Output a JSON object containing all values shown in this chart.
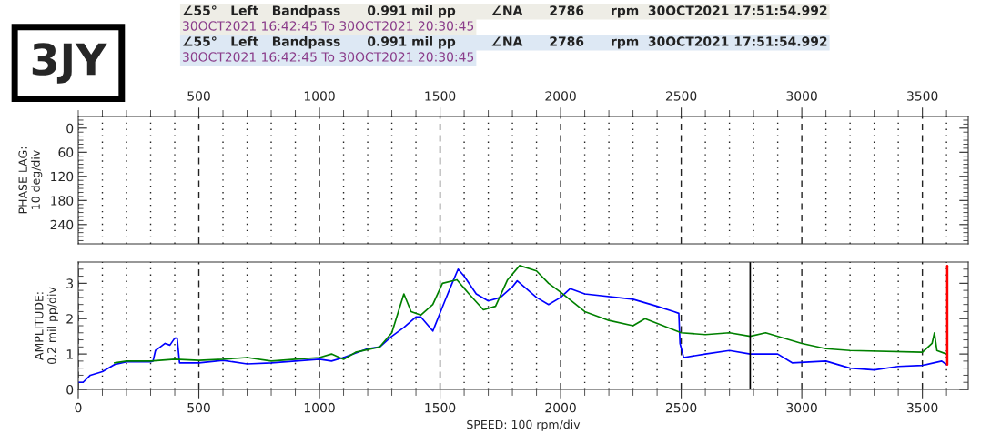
{
  "chart_data": [
    {
      "type": "line",
      "ylabel": "PHASE LAG:\n10 deg/div",
      "xlim": [
        0,
        3690
      ],
      "ylim": [
        288,
        -29
      ],
      "xticks": [
        {
          "value": 0,
          "label": null
        },
        {
          "value": 100,
          "label": null
        },
        {
          "value": 200,
          "label": null
        },
        {
          "value": 300,
          "label": null
        },
        {
          "value": 400,
          "label": null
        },
        500,
        {
          "value": 600,
          "label": null
        },
        {
          "value": 700,
          "label": null
        },
        {
          "value": 800,
          "label": null
        },
        {
          "value": 900,
          "label": null
        },
        1000,
        {
          "value": 1100,
          "label": null
        },
        {
          "value": 1200,
          "label": null
        },
        {
          "value": 1300,
          "label": null
        },
        {
          "value": 1400,
          "label": null
        },
        1500,
        {
          "value": 1600,
          "label": null
        },
        {
          "value": 1700,
          "label": null
        },
        {
          "value": 1800,
          "label": null
        },
        {
          "value": 1900,
          "label": null
        },
        2000,
        {
          "value": 2100,
          "label": null
        },
        {
          "value": 2200,
          "label": null
        },
        {
          "value": 2300,
          "label": null
        },
        {
          "value": 2400,
          "label": null
        },
        2500,
        {
          "value": 2600,
          "label": null
        },
        {
          "value": 2700,
          "label": null
        },
        {
          "value": 2800,
          "label": null
        },
        {
          "value": 2900,
          "label": null
        },
        3000,
        {
          "value": 3100,
          "label": null
        },
        {
          "value": 3200,
          "label": null
        },
        {
          "value": 3300,
          "label": null
        },
        {
          "value": 3400,
          "label": null
        },
        3500,
        {
          "value": 3600,
          "label": null
        }
      ],
      "yticks": [
        {
          "value": -20,
          "label": null
        },
        {
          "value": -10,
          "label": null
        },
        0,
        {
          "value": 10,
          "label": null
        },
        {
          "value": 20,
          "label": null
        },
        {
          "value": 30,
          "label": null
        },
        {
          "value": 40,
          "label": null
        },
        {
          "value": 50,
          "label": null
        },
        60,
        {
          "value": 70,
          "label": null
        },
        {
          "value": 80,
          "label": null
        },
        {
          "value": 90,
          "label": null
        },
        {
          "value": 100,
          "label": null
        },
        {
          "value": 110,
          "label": null
        },
        120,
        {
          "value": 130,
          "label": null
        },
        {
          "value": 140,
          "label": null
        },
        {
          "value": 150,
          "label": null
        },
        {
          "value": 160,
          "label": null
        },
        {
          "value": 170,
          "label": null
        },
        180,
        {
          "value": 190,
          "label": null
        },
        {
          "value": 200,
          "label": null
        },
        {
          "value": 210,
          "label": null
        },
        {
          "value": 220,
          "label": null
        },
        {
          "value": 230,
          "label": null
        },
        240,
        {
          "value": 250,
          "label": null
        },
        {
          "value": 260,
          "label": null
        },
        {
          "value": 270,
          "label": null
        },
        {
          "value": 280,
          "label": null
        }
      ],
      "grid": "x",
      "annotations": [
        "3JY",
        "∠55°   Left   Bandpass      0.991 mil pp        ∠NA      2786      rpm  30OCT2021 17:51:54.992",
        "30OCT2021 16:42:45 To 30OCT2021 20:30:45",
        "∠55°   Left   Bandpass      0.991 mil pp        ∠NA      2786      rpm  30OCT2021 17:51:54.992",
        "30OCT2021 16:42:45 To 30OCT2021 20:30:45"
      ]
    },
    {
      "type": "line",
      "ylabel": "AMPLITUDE:\n0.2 mil pp/div",
      "xlabel": "SPEED: 100 rpm/div",
      "xlim": [
        0,
        3690
      ],
      "ylim": [
        0,
        3.6
      ],
      "xticks": [
        0,
        {
          "value": 100,
          "label": null
        },
        {
          "value": 200,
          "label": null
        },
        {
          "value": 300,
          "label": null
        },
        {
          "value": 400,
          "label": null
        },
        500,
        {
          "value": 600,
          "label": null
        },
        {
          "value": 700,
          "label": null
        },
        {
          "value": 800,
          "label": null
        },
        {
          "value": 900,
          "label": null
        },
        1000,
        {
          "value": 1100,
          "label": null
        },
        {
          "value": 1200,
          "label": null
        },
        {
          "value": 1300,
          "label": null
        },
        {
          "value": 1400,
          "label": null
        },
        1500,
        {
          "value": 1600,
          "label": null
        },
        {
          "value": 1700,
          "label": null
        },
        {
          "value": 1800,
          "label": null
        },
        {
          "value": 1900,
          "label": null
        },
        2000,
        {
          "value": 2100,
          "label": null
        },
        {
          "value": 2200,
          "label": null
        },
        {
          "value": 2300,
          "label": null
        },
        {
          "value": 2400,
          "label": null
        },
        2500,
        {
          "value": 2600,
          "label": null
        },
        {
          "value": 2700,
          "label": null
        },
        {
          "value": 2800,
          "label": null
        },
        {
          "value": 2900,
          "label": null
        },
        3000,
        {
          "value": 3100,
          "label": null
        },
        {
          "value": 3200,
          "label": null
        },
        {
          "value": 3300,
          "label": null
        },
        {
          "value": 3400,
          "label": null
        },
        3500,
        {
          "value": 3600,
          "label": null
        }
      ],
      "yticks": [
        0,
        {
          "value": 0.2,
          "label": null
        },
        {
          "value": 0.4,
          "label": null
        },
        {
          "value": 0.6,
          "label": null
        },
        {
          "value": 0.8,
          "label": null
        },
        1,
        {
          "value": 1.2,
          "label": null
        },
        {
          "value": 1.4,
          "label": null
        },
        {
          "value": 1.6,
          "label": null
        },
        {
          "value": 1.8,
          "label": null
        },
        2,
        {
          "value": 2.2,
          "label": null
        },
        {
          "value": 2.4,
          "label": null
        },
        {
          "value": 2.6,
          "label": null
        },
        {
          "value": 2.8,
          "label": null
        },
        3,
        {
          "value": 3.2,
          "label": null
        },
        {
          "value": 3.4,
          "label": null
        }
      ],
      "grid": "x",
      "ref_lines": [
        {
          "axis": "x",
          "value": 2786,
          "color": "#000000",
          "line_style": "solid"
        }
      ],
      "series": [
        {
          "color": "#0000ff",
          "x": [
            0,
            20,
            50,
            100,
            150,
            200,
            300,
            310,
            320,
            340,
            360,
            380,
            400,
            410,
            420,
            500,
            600,
            700,
            800,
            900,
            1000,
            1050,
            1100,
            1200,
            1250,
            1300,
            1350,
            1400,
            1420,
            1470,
            1520,
            1550,
            1575,
            1600,
            1650,
            1700,
            1750,
            1800,
            1820,
            1900,
            1950,
            2000,
            2040,
            2100,
            2300,
            2400,
            2470,
            2490,
            2495,
            2510,
            2600,
            2700,
            2786,
            2900,
            2960,
            3100,
            3200,
            3300,
            3400,
            3500,
            3580,
            3600
          ],
          "values": [
            0.2,
            0.2,
            0.4,
            0.5,
            0.7,
            0.78,
            0.78,
            0.8,
            1.1,
            1.2,
            1.3,
            1.25,
            1.45,
            1.45,
            0.75,
            0.75,
            0.82,
            0.72,
            0.75,
            0.8,
            0.85,
            0.8,
            0.9,
            1.15,
            1.2,
            1.5,
            1.75,
            2.05,
            2.05,
            1.65,
            2.5,
            3.0,
            3.4,
            3.2,
            2.7,
            2.5,
            2.6,
            2.9,
            3.07,
            2.6,
            2.4,
            2.6,
            2.85,
            2.7,
            2.55,
            2.35,
            2.2,
            2.15,
            1.3,
            0.9,
            1.0,
            1.1,
            1.0,
            1.0,
            0.75,
            0.8,
            0.6,
            0.55,
            0.65,
            0.68,
            0.8,
            0.7
          ]
        },
        {
          "color": "#008000",
          "x": [
            150,
            200,
            300,
            400,
            500,
            600,
            700,
            800,
            900,
            1000,
            1050,
            1100,
            1150,
            1250,
            1300,
            1350,
            1380,
            1420,
            1470,
            1510,
            1570,
            1620,
            1680,
            1730,
            1780,
            1830,
            1900,
            1950,
            2000,
            2100,
            2200,
            2300,
            2350,
            2500,
            2600,
            2700,
            2786,
            2850,
            3000,
            3100,
            3200,
            3500,
            3540,
            3550,
            3560,
            3600
          ],
          "values": [
            0.75,
            0.8,
            0.8,
            0.85,
            0.82,
            0.85,
            0.9,
            0.8,
            0.85,
            0.9,
            1.0,
            0.85,
            1.05,
            1.2,
            1.6,
            2.7,
            2.2,
            2.1,
            2.4,
            3.0,
            3.1,
            2.7,
            2.25,
            2.35,
            3.1,
            3.5,
            3.35,
            3.0,
            2.75,
            2.2,
            1.95,
            1.8,
            2.0,
            1.6,
            1.55,
            1.6,
            1.5,
            1.6,
            1.3,
            1.15,
            1.1,
            1.05,
            1.3,
            1.6,
            1.1,
            1.0
          ]
        },
        {
          "color": "#ff0000",
          "x": [
            3603,
            3603
          ],
          "values": [
            0.7,
            3.49
          ]
        }
      ]
    }
  ]
}
